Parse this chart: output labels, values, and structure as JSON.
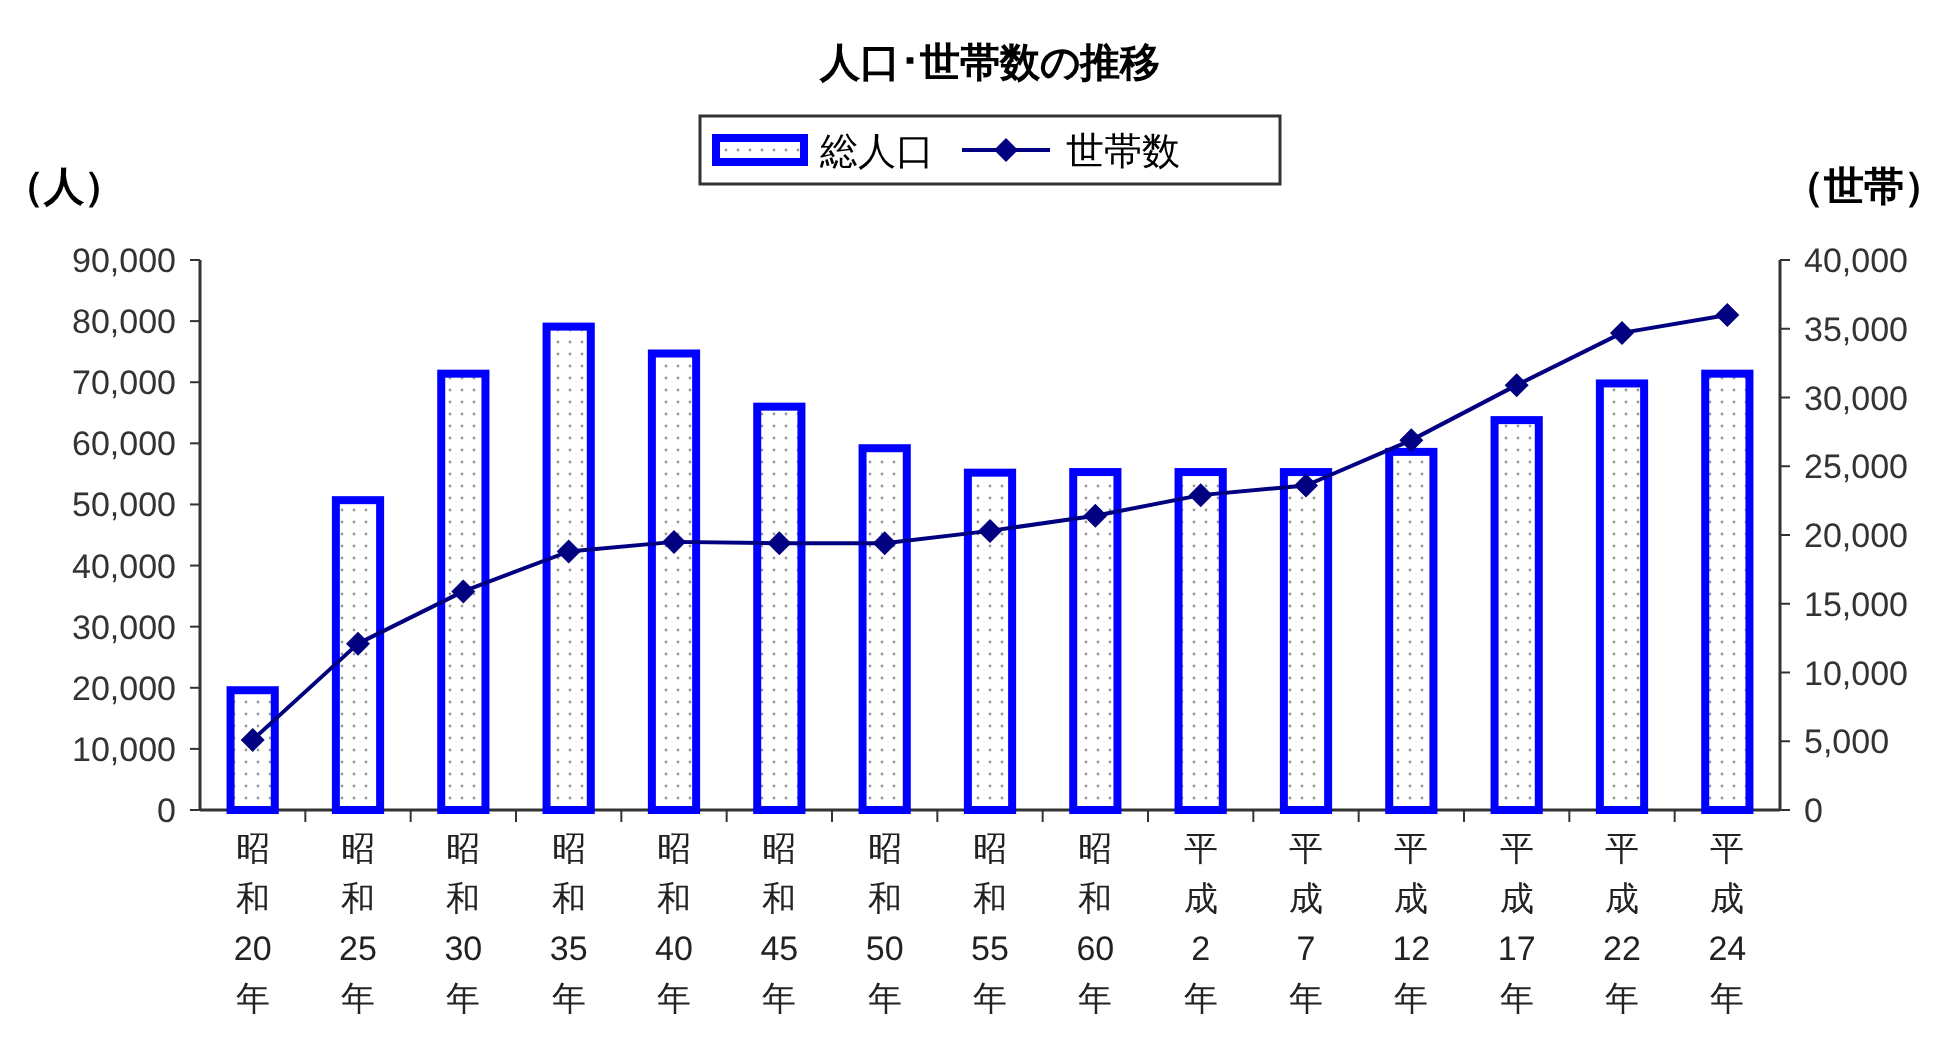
{
  "chart_data": {
    "type": "bar",
    "title": "人口･世帯数の推移",
    "ylabel": "（人）",
    "y2label": "（世帯）",
    "legend": "top",
    "categories": [
      "昭和20年",
      "昭和25年",
      "昭和30年",
      "昭和35年",
      "昭和40年",
      "昭和45年",
      "昭和50年",
      "昭和55年",
      "昭和60年",
      "平成2年",
      "平成7年",
      "平成12年",
      "平成17年",
      "平成22年",
      "平成24年"
    ],
    "series": [
      {
        "name": "総人口",
        "color": "#0000ff",
        "values": [
          19600,
          50700,
          71400,
          79100,
          74700,
          66000,
          59200,
          55200,
          55300,
          55300,
          55300,
          58600,
          63800,
          69800,
          71400
        ]
      },
      {
        "name": "世帯数",
        "type": "line",
        "axis": "y2",
        "color": "#000080",
        "marker": "diamond",
        "values": [
          5100,
          12100,
          15900,
          18800,
          19500,
          19400,
          19400,
          20300,
          21400,
          22900,
          23600,
          26900,
          30900,
          34700,
          36000
        ]
      }
    ],
    "ylim": [
      0,
      90000
    ],
    "yticks": [
      0,
      {
        "value": 10000,
        "label": "10,000"
      },
      {
        "value": 20000,
        "label": "20,000"
      },
      {
        "value": 30000,
        "label": "30,000"
      },
      {
        "value": 40000,
        "label": "40,000"
      },
      {
        "value": 50000,
        "label": "50,000"
      },
      {
        "value": 60000,
        "label": "60,000"
      },
      {
        "value": 70000,
        "label": "70,000"
      },
      {
        "value": 80000,
        "label": "80,000"
      },
      {
        "value": 90000,
        "label": "90,000"
      }
    ],
    "y2lim": [
      0,
      40000
    ],
    "y2ticks": [
      0,
      {
        "value": 5000,
        "label": "5,000"
      },
      {
        "value": 10000,
        "label": "10,000"
      },
      {
        "value": 15000,
        "label": "15,000"
      },
      {
        "value": 20000,
        "label": "20,000"
      },
      {
        "value": 25000,
        "label": "25,000"
      },
      {
        "value": 30000,
        "label": "30,000"
      },
      {
        "value": 35000,
        "label": "35,000"
      },
      {
        "value": 40000,
        "label": "40,000"
      }
    ]
  }
}
